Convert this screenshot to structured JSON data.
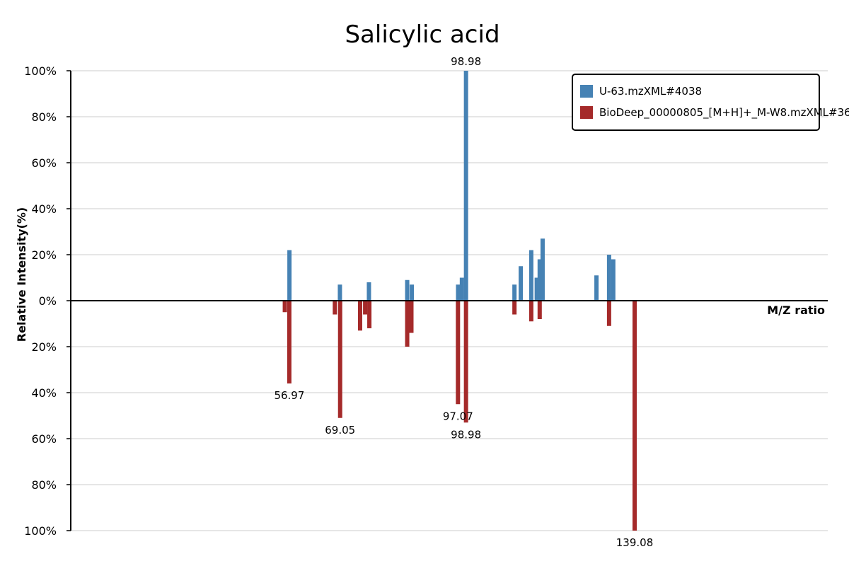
{
  "chart_data": {
    "type": "bar",
    "title": "Salicylic acid",
    "xlabel": "M/Z ratio",
    "ylabel": "Relative Intensity(%)",
    "y_ticks": [
      "100%",
      "80%",
      "60%",
      "40%",
      "20%",
      "0%",
      "20%",
      "40%",
      "60%",
      "80%",
      "100%"
    ],
    "ylim": [
      -100,
      100
    ],
    "xlim": [
      5,
      185
    ],
    "grid": true,
    "legend_position": "top-right",
    "series": [
      {
        "name": "U-63.mzXML#4038",
        "color": "#4682b4",
        "direction": "up",
        "points": [
          {
            "mz": 57.0,
            "intensity": 22
          },
          {
            "mz": 69.0,
            "intensity": 7
          },
          {
            "mz": 75.9,
            "intensity": 8
          },
          {
            "mz": 85.0,
            "intensity": 9
          },
          {
            "mz": 86.1,
            "intensity": 7
          },
          {
            "mz": 97.1,
            "intensity": 7
          },
          {
            "mz": 98.0,
            "intensity": 10
          },
          {
            "mz": 98.98,
            "intensity": 100
          },
          {
            "mz": 110.5,
            "intensity": 7
          },
          {
            "mz": 112.0,
            "intensity": 15
          },
          {
            "mz": 114.5,
            "intensity": 22
          },
          {
            "mz": 115.8,
            "intensity": 10
          },
          {
            "mz": 116.5,
            "intensity": 18
          },
          {
            "mz": 117.2,
            "intensity": 27
          },
          {
            "mz": 130.0,
            "intensity": 11
          },
          {
            "mz": 133.0,
            "intensity": 20
          },
          {
            "mz": 134.0,
            "intensity": 18
          }
        ]
      },
      {
        "name": "BioDeep_00000805_[M+H]+_M-W8.mzXML#36",
        "color": "#a52a2a",
        "direction": "down",
        "points": [
          {
            "mz": 55.9,
            "intensity": 5
          },
          {
            "mz": 56.97,
            "intensity": 36
          },
          {
            "mz": 67.8,
            "intensity": 6
          },
          {
            "mz": 69.05,
            "intensity": 51
          },
          {
            "mz": 73.8,
            "intensity": 13
          },
          {
            "mz": 75.0,
            "intensity": 6
          },
          {
            "mz": 76.0,
            "intensity": 12
          },
          {
            "mz": 85.0,
            "intensity": 20
          },
          {
            "mz": 86.0,
            "intensity": 14
          },
          {
            "mz": 97.07,
            "intensity": 45
          },
          {
            "mz": 98.98,
            "intensity": 53
          },
          {
            "mz": 110.5,
            "intensity": 6
          },
          {
            "mz": 114.5,
            "intensity": 9
          },
          {
            "mz": 116.5,
            "intensity": 8
          },
          {
            "mz": 133.0,
            "intensity": 11
          },
          {
            "mz": 139.08,
            "intensity": 100
          }
        ]
      }
    ],
    "annotations": [
      {
        "text": "98.98",
        "mz": 98.98,
        "side": "top"
      },
      {
        "text": "56.97",
        "mz": 56.97,
        "side": "bottom"
      },
      {
        "text": "97.07",
        "mz": 97.07,
        "side": "bottom"
      },
      {
        "text": "69.05",
        "mz": 69.05,
        "side": "bottom"
      },
      {
        "text": "98.98",
        "mz": 98.98,
        "side": "bottom"
      },
      {
        "text": "139.08",
        "mz": 139.08,
        "side": "bottom"
      }
    ]
  }
}
